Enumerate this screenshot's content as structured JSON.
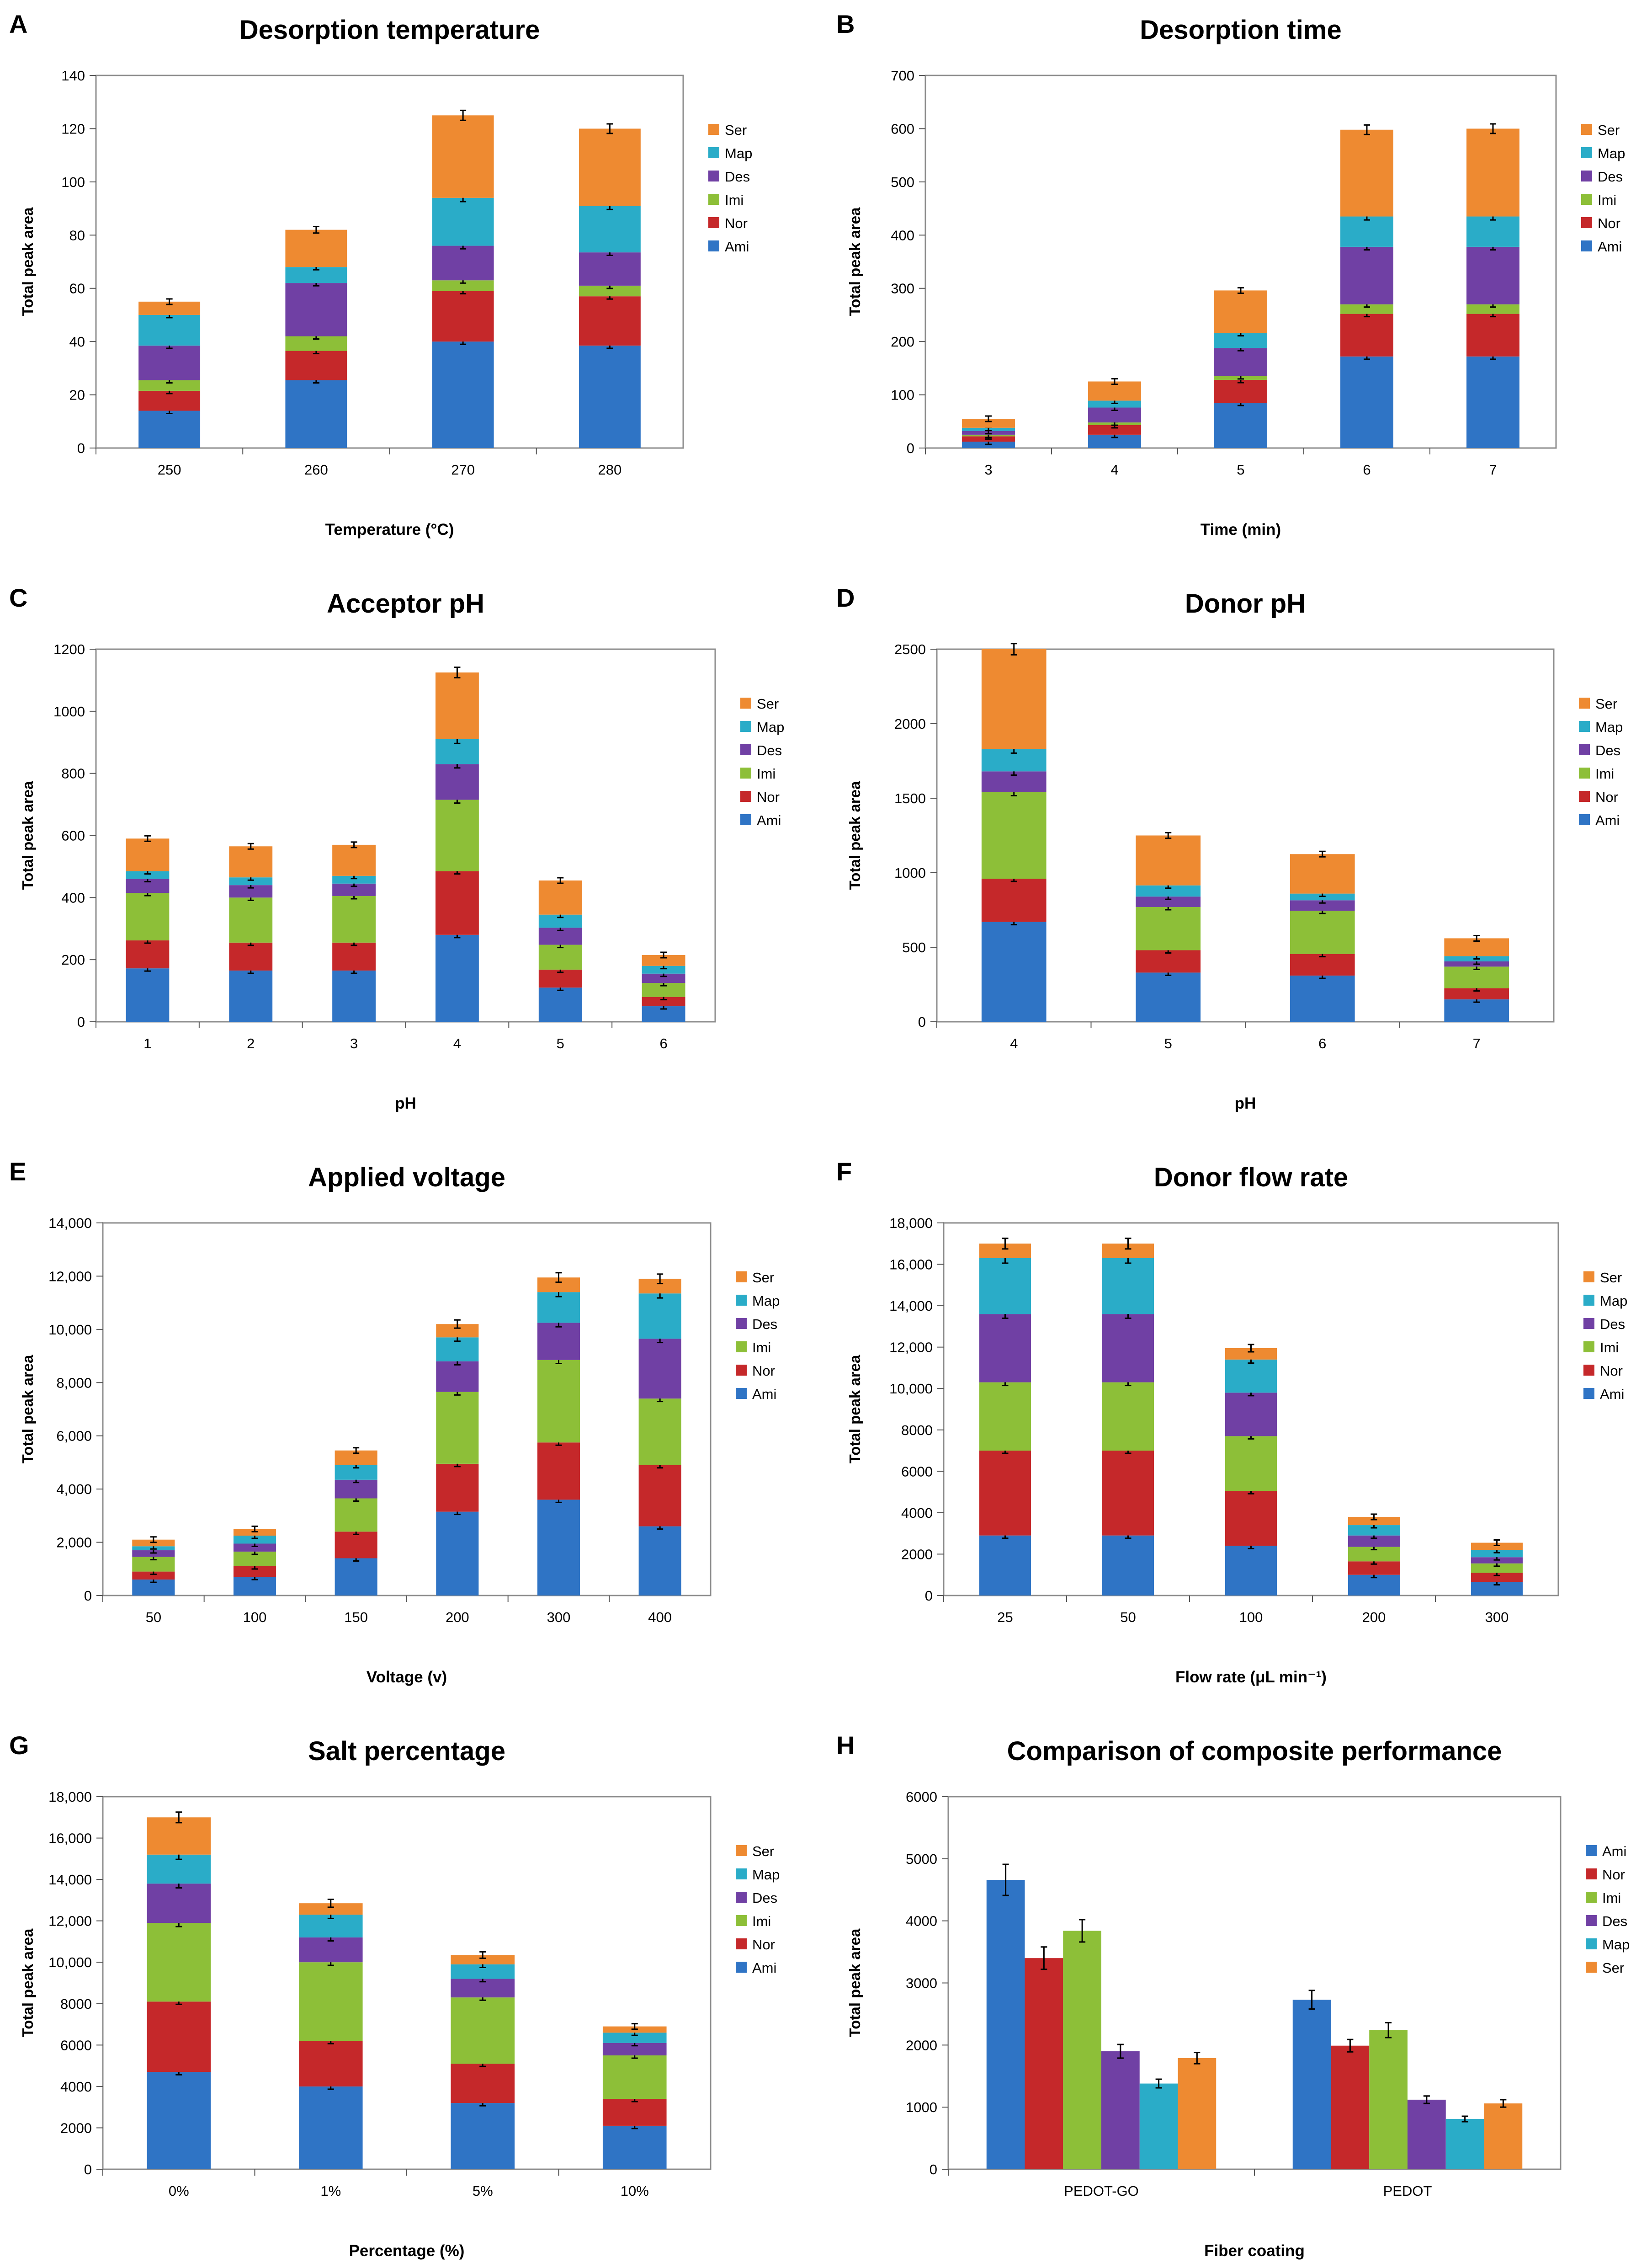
{
  "colors": {
    "Ami": "#2F74C5",
    "Nor": "#C5282A",
    "Imi": "#8DBF38",
    "Des": "#7040A4",
    "Map": "#2AACC8",
    "Ser": "#EE8A31"
  },
  "chart_data": [
    {
      "letter": "A",
      "type": "bar",
      "stacked": true,
      "title": "Desorption temperature",
      "xlabel": "Temperature (°C)",
      "ylabel": "Total peak area",
      "categories": [
        "250",
        "260",
        "270",
        "280"
      ],
      "ylim": [
        0,
        140
      ],
      "yticks": [
        "0",
        "20",
        "40",
        "60",
        "80",
        "100",
        "120",
        "140"
      ],
      "legend_position": "right",
      "series": [
        {
          "name": "Ami",
          "values": [
            14,
            25.5,
            40,
            38.5
          ]
        },
        {
          "name": "Nor",
          "values": [
            7.5,
            11,
            19,
            18.5
          ]
        },
        {
          "name": "Imi",
          "values": [
            4,
            5.5,
            4,
            4
          ]
        },
        {
          "name": "Des",
          "values": [
            13,
            20,
            13,
            12.5
          ]
        },
        {
          "name": "Map",
          "values": [
            11.5,
            6,
            18,
            17.5
          ]
        },
        {
          "name": "Ser",
          "values": [
            5,
            14,
            31,
            29
          ]
        }
      ]
    },
    {
      "letter": "B",
      "type": "bar",
      "stacked": true,
      "title": "Desorption time",
      "xlabel": "Time (min)",
      "ylabel": "Total peak area",
      "categories": [
        "3",
        "4",
        "5",
        "6",
        "7"
      ],
      "ylim": [
        0,
        700
      ],
      "yticks": [
        "0",
        "100",
        "200",
        "300",
        "400",
        "500",
        "600",
        "700"
      ],
      "legend_position": "right",
      "series": [
        {
          "name": "Ami",
          "values": [
            12,
            25,
            85,
            172,
            172
          ]
        },
        {
          "name": "Nor",
          "values": [
            10,
            18,
            43,
            80,
            80
          ]
        },
        {
          "name": "Imi",
          "values": [
            3,
            5,
            7,
            18,
            18
          ]
        },
        {
          "name": "Des",
          "values": [
            7,
            28,
            53,
            108,
            108
          ]
        },
        {
          "name": "Map",
          "values": [
            6,
            13,
            28,
            57,
            57
          ]
        },
        {
          "name": "Ser",
          "values": [
            17,
            36,
            80,
            163,
            165
          ]
        }
      ]
    },
    {
      "letter": "C",
      "type": "bar",
      "stacked": true,
      "title": "Acceptor pH",
      "xlabel": "pH",
      "ylabel": "Total peak area",
      "categories": [
        "1",
        "2",
        "3",
        "4",
        "5",
        "6"
      ],
      "ylim": [
        0,
        1200
      ],
      "yticks": [
        "0",
        "200",
        "400",
        "600",
        "800",
        "1000",
        "1200"
      ],
      "legend_position": "right",
      "series": [
        {
          "name": "Ami",
          "values": [
            172,
            165,
            165,
            280,
            110,
            50
          ]
        },
        {
          "name": "Nor",
          "values": [
            90,
            90,
            90,
            205,
            58,
            30
          ]
        },
        {
          "name": "Imi",
          "values": [
            153,
            145,
            150,
            230,
            80,
            45
          ]
        },
        {
          "name": "Des",
          "values": [
            45,
            40,
            40,
            115,
            55,
            30
          ]
        },
        {
          "name": "Map",
          "values": [
            25,
            25,
            25,
            80,
            42,
            25
          ]
        },
        {
          "name": "Ser",
          "values": [
            105,
            100,
            100,
            215,
            110,
            35
          ]
        }
      ]
    },
    {
      "letter": "D",
      "type": "bar",
      "stacked": true,
      "title": "Donor pH",
      "xlabel": "pH",
      "ylabel": "Total peak area",
      "categories": [
        "4",
        "5",
        "6",
        "7"
      ],
      "ylim": [
        0,
        2500
      ],
      "yticks": [
        "0",
        "500",
        "1000",
        "1500",
        "2000",
        "2500"
      ],
      "legend_position": "right",
      "series": [
        {
          "name": "Ami",
          "values": [
            670,
            330,
            310,
            150
          ]
        },
        {
          "name": "Nor",
          "values": [
            290,
            150,
            145,
            75
          ]
        },
        {
          "name": "Imi",
          "values": [
            580,
            290,
            290,
            145
          ]
        },
        {
          "name": "Des",
          "values": [
            140,
            70,
            70,
            35
          ]
        },
        {
          "name": "Map",
          "values": [
            150,
            75,
            45,
            35
          ]
        },
        {
          "name": "Ser",
          "values": [
            670,
            335,
            265,
            120
          ]
        }
      ]
    },
    {
      "letter": "E",
      "type": "bar",
      "stacked": true,
      "title": "Applied voltage",
      "xlabel": "Voltage (v)",
      "ylabel": "Total peak area",
      "categories": [
        "50",
        "100",
        "150",
        "200",
        "300",
        "400"
      ],
      "ylim": [
        0,
        14000
      ],
      "yticks": [
        "0",
        "2,000",
        "4,000",
        "6,000",
        "8,000",
        "10,000",
        "12,000",
        "14,000"
      ],
      "legend_position": "right",
      "series": [
        {
          "name": "Ami",
          "values": [
            600,
            700,
            1400,
            3150,
            3600,
            2600
          ]
        },
        {
          "name": "Nor",
          "values": [
            300,
            400,
            1000,
            1800,
            2150,
            2300
          ]
        },
        {
          "name": "Imi",
          "values": [
            550,
            550,
            1250,
            2700,
            3100,
            2500
          ]
        },
        {
          "name": "Des",
          "values": [
            250,
            300,
            700,
            1150,
            1400,
            2250
          ]
        },
        {
          "name": "Map",
          "values": [
            150,
            300,
            550,
            900,
            1150,
            1700
          ]
        },
        {
          "name": "Ser",
          "values": [
            250,
            250,
            550,
            500,
            550,
            550
          ]
        }
      ]
    },
    {
      "letter": "F",
      "type": "bar",
      "stacked": true,
      "title": "Donor flow rate",
      "xlabel": "Flow rate (μL min⁻¹)",
      "ylabel": "Total peak area",
      "categories": [
        "25",
        "50",
        "100",
        "200",
        "300"
      ],
      "ylim": [
        0,
        18000
      ],
      "yticks": [
        "0",
        "2000",
        "4000",
        "6000",
        "8000",
        "10,000",
        "12,000",
        "14,000",
        "16,000",
        "18,000"
      ],
      "legend_position": "right",
      "series": [
        {
          "name": "Ami",
          "values": [
            2900,
            2900,
            2400,
            1000,
            650
          ]
        },
        {
          "name": "Nor",
          "values": [
            4100,
            4100,
            2650,
            650,
            450
          ]
        },
        {
          "name": "Imi",
          "values": [
            3300,
            3300,
            2650,
            700,
            450
          ]
        },
        {
          "name": "Des",
          "values": [
            3300,
            3300,
            2100,
            550,
            300
          ]
        },
        {
          "name": "Map",
          "values": [
            2700,
            2700,
            1600,
            500,
            350
          ]
        },
        {
          "name": "Ser",
          "values": [
            700,
            700,
            550,
            400,
            350
          ]
        }
      ]
    },
    {
      "letter": "G",
      "type": "bar",
      "stacked": true,
      "title": "Salt percentage",
      "xlabel": "Percentage (%)",
      "ylabel": "Total peak area",
      "categories": [
        "0%",
        "1%",
        "5%",
        "10%"
      ],
      "ylim": [
        0,
        18000
      ],
      "yticks": [
        "0",
        "2000",
        "4000",
        "6000",
        "8000",
        "10,000",
        "12,000",
        "14,000",
        "16,000",
        "18,000"
      ],
      "legend_position": "right",
      "series": [
        {
          "name": "Ami",
          "values": [
            4700,
            4000,
            3200,
            2100
          ]
        },
        {
          "name": "Nor",
          "values": [
            3400,
            2200,
            1900,
            1300
          ]
        },
        {
          "name": "Imi",
          "values": [
            3800,
            3800,
            3200,
            2100
          ]
        },
        {
          "name": "Des",
          "values": [
            1900,
            1200,
            900,
            600
          ]
        },
        {
          "name": "Map",
          "values": [
            1400,
            1100,
            700,
            500
          ]
        },
        {
          "name": "Ser",
          "values": [
            1800,
            550,
            450,
            300
          ]
        }
      ]
    },
    {
      "letter": "H",
      "type": "bar",
      "stacked": false,
      "title": "Comparison of composite performance",
      "xlabel": "Fiber coating",
      "ylabel": "Total peak area",
      "categories": [
        "PEDOT-GO",
        "PEDOT"
      ],
      "ylim": [
        0,
        6000
      ],
      "yticks": [
        "0",
        "1000",
        "2000",
        "3000",
        "4000",
        "5000",
        "6000"
      ],
      "legend_position": "right",
      "series": [
        {
          "name": "Ami",
          "values": [
            4660,
            2730
          ],
          "errors": [
            250,
            150
          ]
        },
        {
          "name": "Nor",
          "values": [
            3400,
            1990
          ],
          "errors": [
            180,
            100
          ]
        },
        {
          "name": "Imi",
          "values": [
            3840,
            2240
          ],
          "errors": [
            180,
            120
          ]
        },
        {
          "name": "Des",
          "values": [
            1900,
            1120
          ],
          "errors": [
            110,
            60
          ]
        },
        {
          "name": "Map",
          "values": [
            1380,
            810
          ],
          "errors": [
            70,
            40
          ]
        },
        {
          "name": "Ser",
          "values": [
            1790,
            1060
          ],
          "errors": [
            90,
            60
          ]
        }
      ]
    }
  ]
}
